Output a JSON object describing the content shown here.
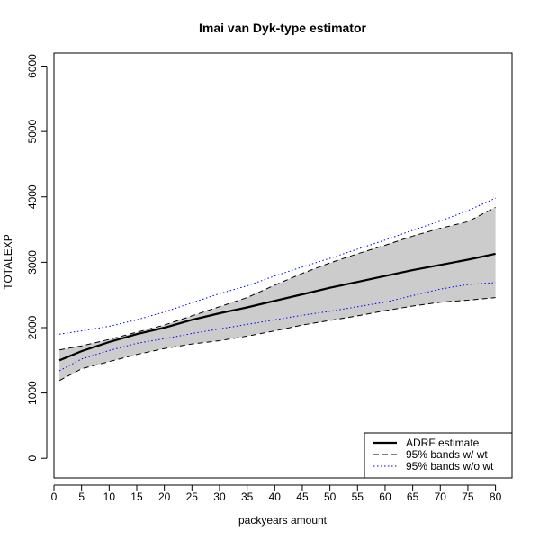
{
  "chart_data": {
    "type": "line",
    "title": "Imai van Dyk-type estimator",
    "xlabel": "packyears amount",
    "ylabel": "TOTALEXP",
    "xlim": [
      0,
      83
    ],
    "ylim": [
      -300,
      6200
    ],
    "x_ticks": [
      0,
      5,
      10,
      15,
      20,
      25,
      30,
      35,
      40,
      45,
      50,
      55,
      60,
      65,
      70,
      75,
      80
    ],
    "y_ticks": [
      0,
      1000,
      2000,
      3000,
      4000,
      5000,
      6000
    ],
    "grid": false,
    "legend_position": "bottom-right",
    "x": [
      1,
      5,
      10,
      15,
      20,
      25,
      30,
      35,
      40,
      45,
      50,
      55,
      60,
      65,
      70,
      75,
      80
    ],
    "series": [
      {
        "name": "ADRF estimate",
        "color": "#000000",
        "style": "solid",
        "values": [
          1500,
          1640,
          1780,
          1900,
          2000,
          2120,
          2220,
          2310,
          2410,
          2510,
          2610,
          2700,
          2790,
          2880,
          2960,
          3040,
          3130
        ]
      },
      {
        "name": "95% bands w/ wt",
        "color": "#000000",
        "style": "dashed",
        "band": true,
        "fill": "#cccccc",
        "lower": [
          1190,
          1370,
          1480,
          1590,
          1680,
          1750,
          1800,
          1870,
          1950,
          2040,
          2110,
          2180,
          2260,
          2330,
          2390,
          2420,
          2460
        ],
        "upper": [
          1660,
          1720,
          1820,
          1930,
          2040,
          2180,
          2320,
          2460,
          2650,
          2830,
          2990,
          3130,
          3260,
          3400,
          3520,
          3620,
          3840
        ]
      },
      {
        "name": "95% bands w/o wt",
        "color": "#0000ff",
        "style": "dotted",
        "lower": [
          1340,
          1520,
          1650,
          1760,
          1830,
          1910,
          1980,
          2050,
          2120,
          2190,
          2250,
          2320,
          2390,
          2490,
          2590,
          2660,
          2690
        ],
        "upper": [
          1900,
          1950,
          2020,
          2120,
          2240,
          2380,
          2520,
          2640,
          2790,
          2930,
          3060,
          3200,
          3340,
          3490,
          3630,
          3790,
          3980
        ]
      }
    ]
  }
}
